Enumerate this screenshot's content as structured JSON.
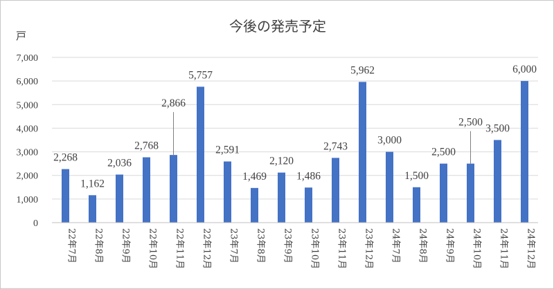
{
  "chart_data": {
    "type": "bar",
    "title": "今後の発売予定",
    "ylabel": "戸",
    "ylim": [
      0,
      7000
    ],
    "yticks": [
      "0",
      "1,000",
      "2,000",
      "3,000",
      "4,000",
      "5,000",
      "6,000",
      "7,000"
    ],
    "grid": true,
    "legend": "none",
    "color": "#4472c4",
    "categories": [
      "22年7月",
      "22年8月",
      "22年9月",
      "22年10月",
      "22年11月",
      "22年12月",
      "23年7月",
      "23年8月",
      "23年9月",
      "23年10月",
      "23年11月",
      "23年12月",
      "24年7月",
      "24年8月",
      "24年9月",
      "24年10月",
      "24年11月",
      "24年12月"
    ],
    "values": [
      2268,
      1162,
      2036,
      2768,
      2866,
      5757,
      2591,
      1469,
      2120,
      1486,
      2743,
      5962,
      3000,
      1500,
      2500,
      2500,
      3500,
      6000
    ],
    "data_labels": [
      "2,268",
      "1,162",
      "2,036",
      "2,768",
      "2,866",
      "5,757",
      "2,591",
      "1,469",
      "2,120",
      "1,486",
      "2,743",
      "5,962",
      "3,000",
      "1,500",
      "2,500",
      "2,500",
      "3,500",
      "6,000"
    ]
  }
}
